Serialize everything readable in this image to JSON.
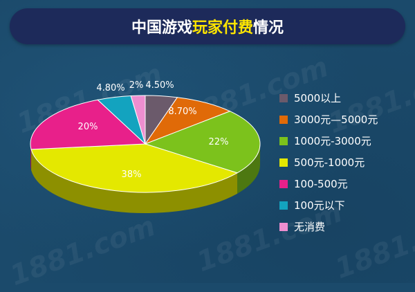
{
  "title": {
    "part1": "中国游戏",
    "part2": "玩家付费",
    "part3": "情况"
  },
  "colors": {
    "title_bg": "#1d2a5a",
    "title_highlight": "#ffe600",
    "background": "#1b4a6b"
  },
  "watermark_text": "1881.com",
  "chart_data": {
    "type": "pie",
    "title": "中国游戏玩家付费情况",
    "legend_position": "right",
    "slices": [
      {
        "label": "5000以上",
        "value": 4.5,
        "display": "4.50%",
        "color": "#6b5a6b"
      },
      {
        "label": "3000元—5000元",
        "value": 8.7,
        "display": "8.70%",
        "color": "#e06a08"
      },
      {
        "label": "1000元-3000元",
        "value": 22,
        "display": "22%",
        "color": "#7cc21c"
      },
      {
        "label": "500元-1000元",
        "value": 38,
        "display": "38%",
        "color": "#e4e800"
      },
      {
        "label": "100-500元",
        "value": 20,
        "display": "20%",
        "color": "#e8208a"
      },
      {
        "label": "100元以下",
        "value": 4.8,
        "display": "4.80%",
        "color": "#13a3bf"
      },
      {
        "label": "无消费",
        "value": 2,
        "display": "2%",
        "color": "#ee8ed0"
      }
    ]
  }
}
